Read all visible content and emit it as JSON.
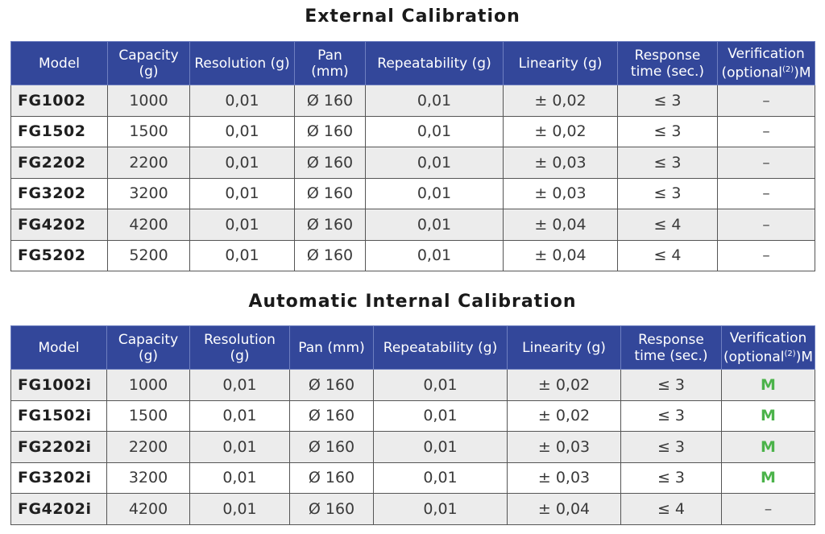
{
  "external": {
    "title": "External Calibration",
    "headers": {
      "model": "Model",
      "capacity_1": "Capacity",
      "capacity_2": "(g)",
      "resolution": "Resolution (g)",
      "pan_1": "Pan",
      "pan_2": "(mm)",
      "repeatability": "Repeatability (g)",
      "linearity": "Linearity (g)",
      "response_1": "Response",
      "response_2": "time (sec.)",
      "verification_1": "Verification",
      "verification_2a": "(optional",
      "verification_sup": "(2)",
      "verification_2b": ")M"
    },
    "rows": [
      {
        "model": "FG1002",
        "capacity": "1000",
        "resolution": "0,01",
        "pan": "Ø 160",
        "repeatability": "0,01",
        "linearity": "± 0,02",
        "response": "≤ 3",
        "verification": "–"
      },
      {
        "model": "FG1502",
        "capacity": "1500",
        "resolution": "0,01",
        "pan": "Ø 160",
        "repeatability": "0,01",
        "linearity": "± 0,02",
        "response": "≤ 3",
        "verification": "–"
      },
      {
        "model": "FG2202",
        "capacity": "2200",
        "resolution": "0,01",
        "pan": "Ø 160",
        "repeatability": "0,01",
        "linearity": "± 0,03",
        "response": "≤ 3",
        "verification": "–"
      },
      {
        "model": "FG3202",
        "capacity": "3200",
        "resolution": "0,01",
        "pan": "Ø 160",
        "repeatability": "0,01",
        "linearity": "± 0,03",
        "response": "≤ 3",
        "verification": "–"
      },
      {
        "model": "FG4202",
        "capacity": "4200",
        "resolution": "0,01",
        "pan": "Ø 160",
        "repeatability": "0,01",
        "linearity": "± 0,04",
        "response": "≤ 4",
        "verification": "–"
      },
      {
        "model": "FG5202",
        "capacity": "5200",
        "resolution": "0,01",
        "pan": "Ø 160",
        "repeatability": "0,01",
        "linearity": "± 0,04",
        "response": "≤ 4",
        "verification": "–"
      }
    ]
  },
  "internal": {
    "title": "Automatic Internal Calibration",
    "headers": {
      "model": "Model",
      "capacity_1": "Capacity",
      "capacity_2": "(g)",
      "resolution_1": "Resolution",
      "resolution_2": "(g)",
      "pan": "Pan (mm)",
      "repeatability": "Repeatability (g)",
      "linearity": "Linearity (g)",
      "response_1": "Response",
      "response_2": "time (sec.)",
      "verification_1": "Verification",
      "verification_2a": "(optional",
      "verification_sup": "(2)",
      "verification_2b": ")M"
    },
    "rows": [
      {
        "model": "FG1002i",
        "capacity": "1000",
        "resolution": "0,01",
        "pan": "Ø 160",
        "repeatability": "0,01",
        "linearity": "± 0,02",
        "response": "≤ 3",
        "verification": "M"
      },
      {
        "model": "FG1502i",
        "capacity": "1500",
        "resolution": "0,01",
        "pan": "Ø 160",
        "repeatability": "0,01",
        "linearity": "± 0,02",
        "response": "≤ 3",
        "verification": "M"
      },
      {
        "model": "FG2202i",
        "capacity": "2200",
        "resolution": "0,01",
        "pan": "Ø 160",
        "repeatability": "0,01",
        "linearity": "± 0,03",
        "response": "≤ 3",
        "verification": "M"
      },
      {
        "model": "FG3202i",
        "capacity": "3200",
        "resolution": "0,01",
        "pan": "Ø 160",
        "repeatability": "0,01",
        "linearity": "± 0,03",
        "response": "≤ 3",
        "verification": "M"
      },
      {
        "model": "FG4202i",
        "capacity": "4200",
        "resolution": "0,01",
        "pan": "Ø 160",
        "repeatability": "0,01",
        "linearity": "± 0,04",
        "response": "≤ 4",
        "verification": "–"
      }
    ]
  },
  "colors": {
    "header_bg": "#33479a",
    "header_text": "#ffffff",
    "row_alt_bg": "#ececec",
    "verification_mark": "#4bb34a"
  }
}
